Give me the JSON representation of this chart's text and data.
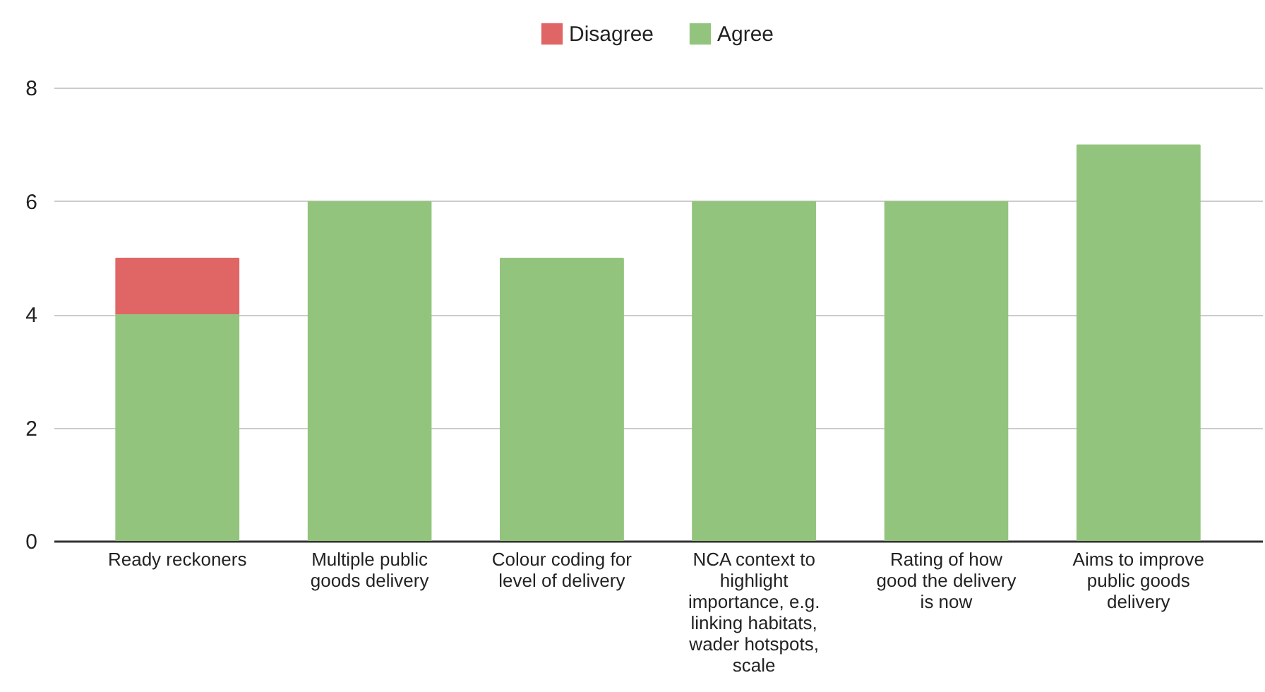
{
  "chart_data": {
    "type": "bar",
    "stacked": true,
    "categories": [
      "Ready reckoners",
      "Multiple public goods delivery",
      "Colour coding for level of delivery",
      "NCA context to highlight importance, e.g. linking habitats, wader hotspots, scale",
      "Rating of how good the delivery is now",
      "Aims to improve public goods delivery"
    ],
    "series": [
      {
        "name": "Agree",
        "color": "#93c47d",
        "values": [
          4,
          6,
          5,
          6,
          6,
          7
        ]
      },
      {
        "name": "Disagree",
        "color": "#e06666",
        "values": [
          1,
          null,
          null,
          null,
          null,
          null
        ]
      }
    ],
    "ylim": [
      0,
      8
    ],
    "yticks": [
      0,
      2,
      4,
      6,
      8
    ],
    "grid": "y",
    "legend": "top"
  }
}
